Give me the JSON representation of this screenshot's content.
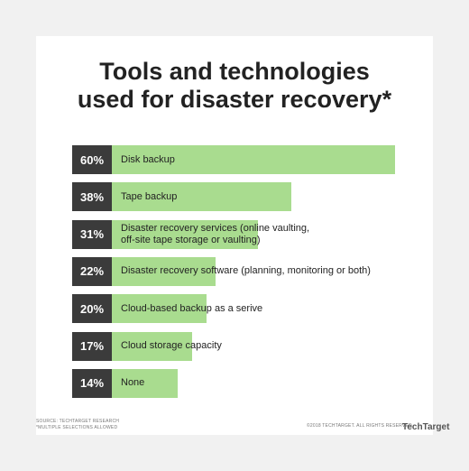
{
  "chart_data": {
    "type": "bar",
    "orientation": "horizontal",
    "title": "Tools and technologies\nused for disaster recovery*",
    "categories": [
      "Disk backup",
      "Tape backup",
      "Disaster recovery services (online vaulting,\noff-site tape storage or vaulting)",
      "Disaster recovery software (planning, monitoring or both)",
      "Cloud-based backup as a serive",
      "Cloud storage capacity",
      "None"
    ],
    "values": [
      60,
      38,
      31,
      22,
      20,
      17,
      14
    ],
    "value_labels": [
      "60%",
      "38%",
      "31%",
      "22%",
      "20%",
      "17%",
      "14%"
    ],
    "color": "#a9dc8f",
    "label_box_color": "#3b3b3b"
  },
  "footer": {
    "source": "SOURCE: TECHTARGET RESEARCH",
    "note": "*MULTIPLE SELECTIONS ALLOWED",
    "copyright": "©2018 TECHTARGET. ALL RIGHTS RESERVED",
    "logo": "TechTarget"
  }
}
